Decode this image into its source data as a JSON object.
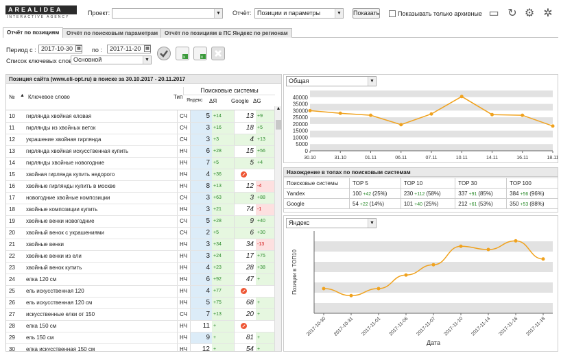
{
  "header": {
    "logo_text": "AREALIDEA",
    "logo_sub": "INTERACTIVE AGENCY",
    "project_label": "Проект:",
    "project_value": "",
    "report_label": "Отчёт:",
    "report_value": "Позиции и параметры",
    "show_button": "Показать",
    "archive_label": "Показывать только архивные",
    "icons": [
      "monitor-icon",
      "refresh-icon",
      "settings-gear-icon",
      "cog-icon"
    ]
  },
  "tabs": [
    {
      "label": "Отчёт по позициям",
      "active": true
    },
    {
      "label": "Отчёт по поисковым параметрам",
      "active": false
    },
    {
      "label": "Отчёт по позициям в ПС Яндекс по регионам",
      "active": false
    }
  ],
  "filters": {
    "period_label": "Период с :",
    "date_from": "2017-10-30",
    "to_label": "по :",
    "date_to": "2017-11-20",
    "keywords_label": "Список ключевых слов:",
    "keywords_value": "Основной"
  },
  "positions_panel": {
    "title": "Позиция сайта (www.eli-opt.ru) в поиске за 30.10.2017 - 20.11.2017",
    "col_no": "№",
    "col_keyword": "Ключевое слово",
    "col_type": "Тип",
    "col_engines": "Поисковые системы",
    "col_yandex": "Яндекс",
    "col_dy": "ΔЯ",
    "col_google": "Google",
    "col_dg": "ΔG",
    "rows": [
      {
        "no": "10",
        "kw": "гирлянда хвойная еловая",
        "t": "СЧ",
        "y": "5",
        "dy": "+14",
        "g": "13",
        "dg": "+9"
      },
      {
        "no": "11",
        "kw": "гирлянды из хвойных веток",
        "t": "СЧ",
        "y": "3",
        "dy": "+16",
        "g": "18",
        "dg": "+5"
      },
      {
        "no": "12",
        "kw": "украшение хвойная гирлянда",
        "t": "СЧ",
        "y": "3",
        "dy": "+3",
        "g": "4",
        "dg": "+13"
      },
      {
        "no": "13",
        "kw": "гирлянда хвойная искусственная купить",
        "t": "НЧ",
        "y": "6",
        "dy": "+28",
        "g": "15",
        "dg": "+56"
      },
      {
        "no": "14",
        "kw": "гирлянды хвойные новогодние",
        "t": "НЧ",
        "y": "7",
        "dy": "+5",
        "g": "5",
        "dg": "+4"
      },
      {
        "no": "15",
        "kw": "хвойная гирлянда купить недорого",
        "t": "НЧ",
        "y": "4",
        "dy": "+36",
        "g": "ban",
        "dg": ""
      },
      {
        "no": "16",
        "kw": "хвойные гирлянды купить в москве",
        "t": "НЧ",
        "y": "8",
        "dy": "+13",
        "g": "12",
        "dg": "-4"
      },
      {
        "no": "17",
        "kw": "новогодние хвойные композиции",
        "t": "СЧ",
        "y": "3",
        "dy": "+63",
        "g": "3",
        "dg": "+88"
      },
      {
        "no": "18",
        "kw": "хвойные композиции купить",
        "t": "НЧ",
        "y": "3",
        "dy": "+21",
        "g": "74",
        "dg": "-1"
      },
      {
        "no": "19",
        "kw": "хвойные венки новогодние",
        "t": "СЧ",
        "y": "5",
        "dy": "+28",
        "g": "9",
        "dg": "+40"
      },
      {
        "no": "20",
        "kw": "хвойный венок с украшениями",
        "t": "СЧ",
        "y": "2",
        "dy": "+5",
        "g": "6",
        "dg": "+30"
      },
      {
        "no": "21",
        "kw": "хвойные венки",
        "t": "НЧ",
        "y": "3",
        "dy": "+34",
        "g": "34",
        "dg": "-13"
      },
      {
        "no": "22",
        "kw": "хвойные венки из ели",
        "t": "НЧ",
        "y": "3",
        "dy": "+24",
        "g": "17",
        "dg": "+75"
      },
      {
        "no": "23",
        "kw": "хвойный венок купить",
        "t": "НЧ",
        "y": "4",
        "dy": "+23",
        "g": "28",
        "dg": "+38"
      },
      {
        "no": "24",
        "kw": "елка 120 см",
        "t": "НЧ",
        "y": "6",
        "dy": "+92",
        "g": "47",
        "dg": "+"
      },
      {
        "no": "25",
        "kw": "ель искусственная 120",
        "t": "НЧ",
        "y": "4",
        "dy": "+77",
        "g": "ban",
        "dg": ""
      },
      {
        "no": "26",
        "kw": "ель искусственная 120 см",
        "t": "НЧ",
        "y": "5",
        "dy": "+75",
        "g": "68",
        "dg": "+"
      },
      {
        "no": "27",
        "kw": "искусственные елки от 150",
        "t": "СЧ",
        "y": "7",
        "dy": "+13",
        "g": "20",
        "dg": "+"
      },
      {
        "no": "28",
        "kw": "елка 150 см",
        "t": "НЧ",
        "y": "11",
        "dy": "+",
        "g": "ban",
        "dg": ""
      },
      {
        "no": "29",
        "kw": "ель 150 см",
        "t": "НЧ",
        "y": "9",
        "dy": "+",
        "g": "81",
        "dg": "+"
      },
      {
        "no": "30",
        "kw": "елка искусственная 150 см",
        "t": "НЧ",
        "y": "12",
        "dy": "+",
        "g": "54",
        "dg": "+"
      }
    ]
  },
  "chart1": {
    "select_value": "Общая",
    "chart_data": {
      "type": "line",
      "categories": [
        "30.10",
        "31.10",
        "01.11",
        "06.11",
        "07.11",
        "10.11",
        "14.11",
        "16.11",
        "18.11"
      ],
      "values": [
        30000,
        28000,
        26500,
        19500,
        27500,
        40500,
        27000,
        26500,
        18500
      ],
      "ylim": [
        0,
        45000
      ],
      "yticks": [
        "0",
        "5000",
        "10000",
        "15000",
        "20000",
        "25000",
        "30000",
        "35000",
        "40000"
      ]
    }
  },
  "tops_panel": {
    "title": "Нахождение в топах по поисковым системам",
    "headers": [
      "Поисковые системы",
      "TOP 5",
      "TOP 10",
      "TOP 30",
      "TOP 100"
    ],
    "rows": [
      {
        "engine": "Yandex",
        "c": [
          [
            "100",
            "+42",
            "(25%)"
          ],
          [
            "230",
            "+112",
            "(58%)"
          ],
          [
            "337",
            "+91",
            "(85%)"
          ],
          [
            "384",
            "+56",
            "(96%)"
          ]
        ]
      },
      {
        "engine": "Google",
        "c": [
          [
            "54",
            "+22",
            "(14%)"
          ],
          [
            "101",
            "+40",
            "(25%)"
          ],
          [
            "212",
            "+61",
            "(53%)"
          ],
          [
            "350",
            "+53",
            "(88%)"
          ]
        ]
      }
    ]
  },
  "chart2": {
    "select_value": "Яндекс",
    "ylabel": "Позиции в ТОП10",
    "xlabel": "Дата",
    "chart_data": {
      "type": "line",
      "categories": [
        "2017-10-30",
        "2017-10-31",
        "2017-11-01",
        "2017-11-06",
        "2017-11-07",
        "2017-11-10",
        "2017-11-14",
        "2017-11-16",
        "2017-11-18"
      ],
      "values": [
        120,
        103,
        120,
        153,
        178,
        223,
        215,
        236,
        192
      ]
    }
  }
}
